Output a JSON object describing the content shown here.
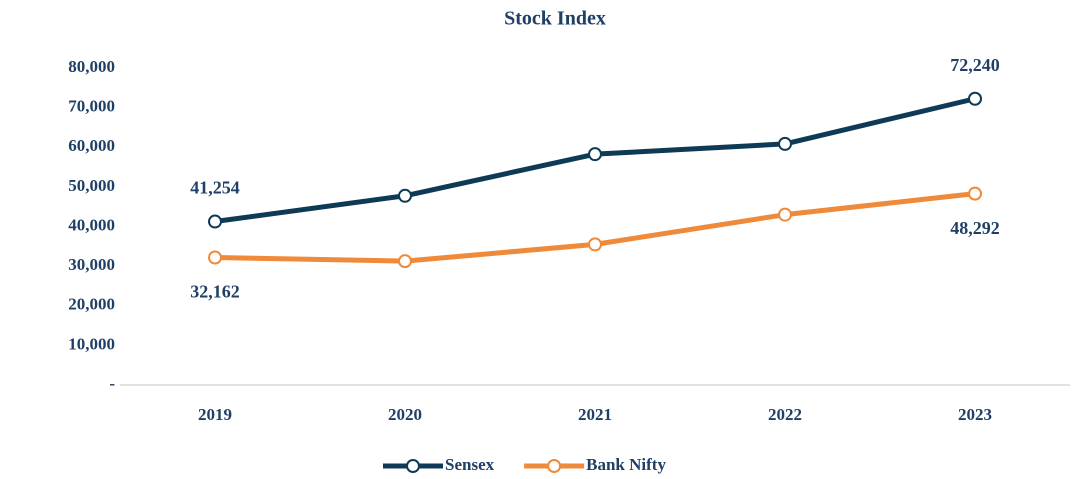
{
  "chart_data": {
    "type": "line",
    "title": "Stock Index",
    "categories": [
      "2019",
      "2020",
      "2021",
      "2022",
      "2023"
    ],
    "series": [
      {
        "name": "Sensex",
        "color": "#0e3a55",
        "values": [
          41254,
          47751,
          58254,
          60841,
          72240
        ],
        "value_labels": [
          "41,254",
          null,
          null,
          null,
          "72,240"
        ]
      },
      {
        "name": "Bank Nifty",
        "color": "#ee8a3a",
        "values": [
          32162,
          31264,
          35481,
          42986,
          48292
        ],
        "value_labels": [
          "32,162",
          null,
          null,
          null,
          "48,292"
        ]
      }
    ],
    "ylim": [
      0,
      80000
    ],
    "yticks": [
      {
        "value": 0,
        "label": "-"
      },
      {
        "value": 10000,
        "label": "10,000"
      },
      {
        "value": 20000,
        "label": "20,000"
      },
      {
        "value": 30000,
        "label": "30,000"
      },
      {
        "value": 40000,
        "label": "40,000"
      },
      {
        "value": 50000,
        "label": "50,000"
      },
      {
        "value": 60000,
        "label": "60,000"
      },
      {
        "value": 70000,
        "label": "70,000"
      },
      {
        "value": 80000,
        "label": "80,000"
      }
    ],
    "grid": false,
    "legend": "bottom"
  }
}
